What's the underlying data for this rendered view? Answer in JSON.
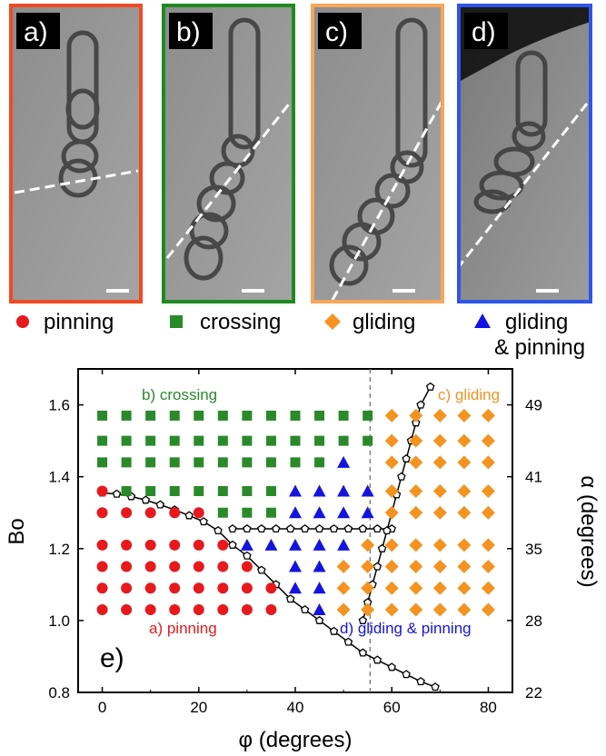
{
  "panels": [
    {
      "label": "a)",
      "border_color": "#f04a24"
    },
    {
      "label": "b)",
      "border_color": "#1f8a20"
    },
    {
      "label": "c)",
      "border_color": "#f7a65a"
    },
    {
      "label": "d)",
      "border_color": "#2f55e6"
    }
  ],
  "legend": [
    {
      "text": "pinning",
      "marker": "circle",
      "color": "#e8191c"
    },
    {
      "text": "crossing",
      "marker": "square",
      "color": "#2a8a2a"
    },
    {
      "text": "gliding",
      "marker": "diamond",
      "color": "#f59321"
    },
    {
      "text": "gliding",
      "text2": "& pinning",
      "marker": "triangle",
      "color": "#1414e0"
    }
  ],
  "chart_data": {
    "type": "scatter",
    "panel_label": "e)",
    "xlabel": "φ (degrees)",
    "ylabel": "Bo",
    "ylabel_right": "α (degrees)",
    "xlim": [
      -5,
      85
    ],
    "ylim": [
      0.8,
      1.7
    ],
    "x_ticks": [
      0,
      20,
      40,
      60,
      80
    ],
    "y_ticks": [
      0.8,
      1.0,
      1.2,
      1.4,
      1.6
    ],
    "y_tick_labels": [
      "0.8",
      "1.0",
      "1.2",
      "1.4",
      "1.6"
    ],
    "right_ticks": [
      {
        "bo": 0.8,
        "label": "22"
      },
      {
        "bo": 1.0,
        "label": "28"
      },
      {
        "bo": 1.2,
        "label": "35"
      },
      {
        "bo": 1.4,
        "label": "41"
      },
      {
        "bo": 1.6,
        "label": "49"
      }
    ],
    "region_labels": [
      {
        "text": "b) crossing",
        "color": "#2a8a2a"
      },
      {
        "text": "c) gliding",
        "color": "#f59321"
      },
      {
        "text": "a) pinning",
        "color": "#e8191c"
      },
      {
        "text": "d) gliding & pinning",
        "color": "#1414e0"
      }
    ],
    "series": [
      {
        "name": "pinning",
        "marker": "circle",
        "color": "#e8191c",
        "points": [
          [
            0,
            1.36
          ],
          [
            0,
            1.3
          ],
          [
            5,
            1.3
          ],
          [
            10,
            1.3
          ],
          [
            15,
            1.3
          ],
          [
            20,
            1.3
          ],
          [
            0,
            1.21
          ],
          [
            5,
            1.21
          ],
          [
            10,
            1.21
          ],
          [
            15,
            1.21
          ],
          [
            20,
            1.21
          ],
          [
            25,
            1.21
          ],
          [
            0,
            1.15
          ],
          [
            5,
            1.15
          ],
          [
            10,
            1.15
          ],
          [
            15,
            1.15
          ],
          [
            20,
            1.15
          ],
          [
            25,
            1.15
          ],
          [
            30,
            1.15
          ],
          [
            0,
            1.09
          ],
          [
            5,
            1.09
          ],
          [
            10,
            1.09
          ],
          [
            15,
            1.09
          ],
          [
            20,
            1.09
          ],
          [
            25,
            1.09
          ],
          [
            30,
            1.09
          ],
          [
            35,
            1.09
          ],
          [
            0,
            1.03
          ],
          [
            5,
            1.03
          ],
          [
            10,
            1.03
          ],
          [
            15,
            1.03
          ],
          [
            20,
            1.03
          ],
          [
            25,
            1.03
          ],
          [
            30,
            1.03
          ],
          [
            35,
            1.03
          ]
        ]
      },
      {
        "name": "crossing",
        "marker": "square",
        "color": "#2a8a2a",
        "points": [
          [
            0,
            1.57
          ],
          [
            5,
            1.57
          ],
          [
            10,
            1.57
          ],
          [
            15,
            1.57
          ],
          [
            20,
            1.57
          ],
          [
            25,
            1.57
          ],
          [
            30,
            1.57
          ],
          [
            35,
            1.57
          ],
          [
            40,
            1.57
          ],
          [
            45,
            1.57
          ],
          [
            50,
            1.57
          ],
          [
            55,
            1.57
          ],
          [
            0,
            1.5
          ],
          [
            5,
            1.5
          ],
          [
            10,
            1.5
          ],
          [
            15,
            1.5
          ],
          [
            20,
            1.5
          ],
          [
            25,
            1.5
          ],
          [
            30,
            1.5
          ],
          [
            35,
            1.5
          ],
          [
            40,
            1.5
          ],
          [
            45,
            1.5
          ],
          [
            50,
            1.5
          ],
          [
            55,
            1.5
          ],
          [
            0,
            1.44
          ],
          [
            5,
            1.44
          ],
          [
            10,
            1.44
          ],
          [
            15,
            1.44
          ],
          [
            20,
            1.44
          ],
          [
            25,
            1.44
          ],
          [
            30,
            1.44
          ],
          [
            35,
            1.44
          ],
          [
            40,
            1.44
          ],
          [
            45,
            1.44
          ],
          [
            5,
            1.36
          ],
          [
            10,
            1.36
          ],
          [
            15,
            1.36
          ],
          [
            20,
            1.36
          ],
          [
            25,
            1.36
          ],
          [
            30,
            1.36
          ],
          [
            35,
            1.36
          ],
          [
            25,
            1.3
          ],
          [
            30,
            1.3
          ],
          [
            35,
            1.3
          ]
        ]
      },
      {
        "name": "gliding & pinning",
        "marker": "triangle",
        "color": "#1414e0",
        "points": [
          [
            50,
            1.44
          ],
          [
            40,
            1.36
          ],
          [
            45,
            1.36
          ],
          [
            50,
            1.36
          ],
          [
            55,
            1.36
          ],
          [
            40,
            1.3
          ],
          [
            45,
            1.3
          ],
          [
            50,
            1.3
          ],
          [
            55,
            1.3
          ],
          [
            30,
            1.21
          ],
          [
            35,
            1.21
          ],
          [
            40,
            1.21
          ],
          [
            45,
            1.21
          ],
          [
            50,
            1.21
          ],
          [
            40,
            1.15
          ],
          [
            45,
            1.15
          ],
          [
            40,
            1.09
          ],
          [
            45,
            1.09
          ],
          [
            45,
            1.03
          ]
        ]
      },
      {
        "name": "gliding",
        "marker": "diamond",
        "color": "#f59321",
        "points": [
          [
            60,
            1.57
          ],
          [
            65,
            1.57
          ],
          [
            70,
            1.57
          ],
          [
            75,
            1.57
          ],
          [
            80,
            1.57
          ],
          [
            60,
            1.5
          ],
          [
            65,
            1.5
          ],
          [
            70,
            1.5
          ],
          [
            75,
            1.5
          ],
          [
            80,
            1.5
          ],
          [
            60,
            1.44
          ],
          [
            65,
            1.44
          ],
          [
            70,
            1.44
          ],
          [
            75,
            1.44
          ],
          [
            80,
            1.44
          ],
          [
            60,
            1.36
          ],
          [
            65,
            1.36
          ],
          [
            70,
            1.36
          ],
          [
            75,
            1.36
          ],
          [
            80,
            1.36
          ],
          [
            60,
            1.3
          ],
          [
            65,
            1.3
          ],
          [
            70,
            1.3
          ],
          [
            75,
            1.3
          ],
          [
            80,
            1.3
          ],
          [
            55,
            1.21
          ],
          [
            60,
            1.21
          ],
          [
            65,
            1.21
          ],
          [
            70,
            1.21
          ],
          [
            75,
            1.21
          ],
          [
            80,
            1.21
          ],
          [
            50,
            1.15
          ],
          [
            55,
            1.15
          ],
          [
            60,
            1.15
          ],
          [
            65,
            1.15
          ],
          [
            70,
            1.15
          ],
          [
            75,
            1.15
          ],
          [
            80,
            1.15
          ],
          [
            50,
            1.09
          ],
          [
            55,
            1.09
          ],
          [
            60,
            1.09
          ],
          [
            65,
            1.09
          ],
          [
            70,
            1.09
          ],
          [
            75,
            1.09
          ],
          [
            80,
            1.09
          ],
          [
            50,
            1.03
          ],
          [
            55,
            1.03
          ],
          [
            60,
            1.03
          ],
          [
            65,
            1.03
          ],
          [
            70,
            1.03
          ],
          [
            75,
            1.03
          ],
          [
            80,
            1.03
          ]
        ]
      }
    ],
    "boundary_curves": [
      {
        "id": "pinning-boundary",
        "points": [
          [
            0,
            1.355
          ],
          [
            3,
            1.352
          ],
          [
            6,
            1.345
          ],
          [
            9,
            1.335
          ],
          [
            12,
            1.322
          ],
          [
            15,
            1.308
          ],
          [
            18,
            1.292
          ],
          [
            21,
            1.275
          ],
          [
            24,
            1.25
          ],
          [
            27,
            1.21
          ],
          [
            30,
            1.18
          ],
          [
            33,
            1.14
          ],
          [
            36,
            1.1
          ],
          [
            39,
            1.06
          ],
          [
            42,
            1.03
          ],
          [
            45,
            1.0
          ],
          [
            48,
            0.97
          ],
          [
            51,
            0.94
          ],
          [
            54,
            0.91
          ],
          [
            57,
            0.89
          ],
          [
            60,
            0.87
          ],
          [
            63,
            0.85
          ],
          [
            66,
            0.83
          ],
          [
            69,
            0.815
          ]
        ]
      },
      {
        "id": "crossing-boundary",
        "points": [
          [
            27,
            1.255
          ],
          [
            30,
            1.255
          ],
          [
            33,
            1.255
          ],
          [
            36,
            1.255
          ],
          [
            39,
            1.255
          ],
          [
            42,
            1.255
          ],
          [
            45,
            1.255
          ],
          [
            48,
            1.255
          ],
          [
            51,
            1.255
          ],
          [
            54,
            1.255
          ],
          [
            57,
            1.255
          ],
          [
            60,
            1.255
          ]
        ]
      },
      {
        "id": "gliding-boundary",
        "points": [
          [
            54,
            1.0
          ],
          [
            55,
            1.05
          ],
          [
            56,
            1.1
          ],
          [
            57,
            1.15
          ],
          [
            58,
            1.2
          ],
          [
            59,
            1.25
          ],
          [
            60,
            1.3
          ],
          [
            61,
            1.35
          ],
          [
            62,
            1.4
          ],
          [
            63,
            1.45
          ],
          [
            64,
            1.5
          ],
          [
            65,
            1.55
          ],
          [
            66,
            1.6
          ],
          [
            68,
            1.65
          ]
        ]
      }
    ],
    "reference_line_x": 55.5
  }
}
